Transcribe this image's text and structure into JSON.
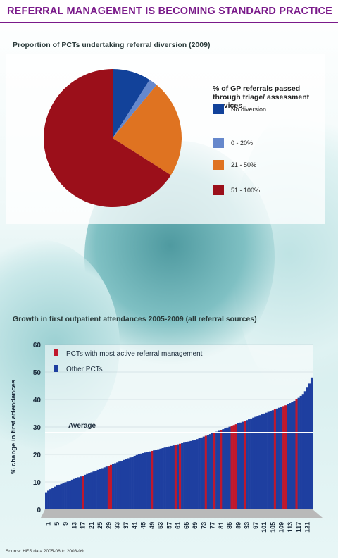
{
  "header": {
    "title": "REFERRAL MANAGEMENT IS BECOMING STANDARD PRACTICE"
  },
  "colors": {
    "title": "#7a1a8a",
    "dark_blue": "#12429a",
    "light_blue": "#6688cc",
    "orange": "#df7321",
    "dark_red": "#9b0f1a",
    "bar_blue": "#1e3fa0",
    "bar_red": "#c0182c"
  },
  "chart_data": [
    {
      "type": "pie",
      "title": "Proportion of PCTs undertaking referral diversion (2009)",
      "legend_title": "% of GP referrals passed through triage/ assessment services",
      "legend_position": "right",
      "slices": [
        {
          "label": "No diversion",
          "value": 9,
          "color": "#12429a"
        },
        {
          "label": "0 - 20%",
          "value": 2,
          "color": "#6688cc"
        },
        {
          "label": "21 - 50%",
          "value": 23,
          "color": "#df7321"
        },
        {
          "label": "51 - 100%",
          "value": 66,
          "color": "#9b0f1a"
        }
      ]
    },
    {
      "type": "bar",
      "title": "Growth in first outpatient attendances 2005-2009 (all referral sources)",
      "ylabel": "% change in first attendances",
      "xlabel": "",
      "ylim": [
        0,
        60
      ],
      "yticks": [
        0,
        10,
        20,
        30,
        40,
        50,
        60
      ],
      "xtick_labels": [
        "1",
        "5",
        "9",
        "13",
        "17",
        "21",
        "25",
        "29",
        "33",
        "37",
        "41",
        "45",
        "49",
        "53",
        "57",
        "61",
        "65",
        "69",
        "73",
        "77",
        "81",
        "85",
        "89",
        "93",
        "97",
        "101",
        "105",
        "109",
        "113",
        "117",
        "121"
      ],
      "legend_position": "top-left",
      "average": {
        "label": "Average",
        "value": 28
      },
      "series": [
        {
          "name": "PCTs with most active referral management",
          "color": "#c0182c",
          "highlight_indices": [
            17,
            29,
            30,
            49,
            60,
            62,
            74,
            78,
            81,
            86,
            87,
            88,
            92,
            106,
            110,
            111,
            116
          ]
        },
        {
          "name": "Other PCTs",
          "color": "#1e3fa0"
        }
      ],
      "bar_count": 124,
      "values": [
        6.0,
        6.8,
        7.4,
        7.9,
        8.3,
        8.7,
        9.0,
        9.3,
        9.6,
        9.9,
        10.2,
        10.5,
        10.8,
        11.1,
        11.4,
        11.7,
        12.0,
        12.3,
        12.6,
        12.9,
        13.2,
        13.5,
        13.8,
        14.1,
        14.4,
        14.7,
        15.0,
        15.3,
        15.6,
        15.9,
        16.2,
        16.5,
        16.8,
        17.1,
        17.4,
        17.7,
        18.0,
        18.3,
        18.6,
        18.9,
        19.2,
        19.5,
        19.8,
        20.1,
        20.3,
        20.5,
        20.7,
        20.9,
        21.1,
        21.3,
        21.5,
        21.7,
        21.9,
        22.1,
        22.3,
        22.5,
        22.7,
        22.9,
        23.1,
        23.3,
        23.5,
        23.7,
        23.9,
        24.1,
        24.3,
        24.5,
        24.7,
        24.9,
        25.1,
        25.3,
        25.6,
        25.9,
        26.2,
        26.5,
        26.8,
        27.1,
        27.4,
        27.7,
        28.0,
        28.3,
        28.6,
        28.9,
        29.2,
        29.5,
        29.8,
        30.1,
        30.4,
        30.7,
        31.0,
        31.3,
        31.6,
        31.9,
        32.2,
        32.5,
        32.8,
        33.1,
        33.4,
        33.7,
        34.0,
        34.3,
        34.6,
        34.9,
        35.2,
        35.5,
        35.8,
        36.1,
        36.4,
        36.7,
        37.0,
        37.3,
        37.6,
        37.9,
        38.3,
        38.7,
        39.1,
        39.5,
        40.0,
        40.6,
        41.3,
        42.0,
        43.0,
        44.3,
        45.8,
        48.0
      ]
    }
  ],
  "source": "Source: HES data 2005-06 to 2008-09"
}
